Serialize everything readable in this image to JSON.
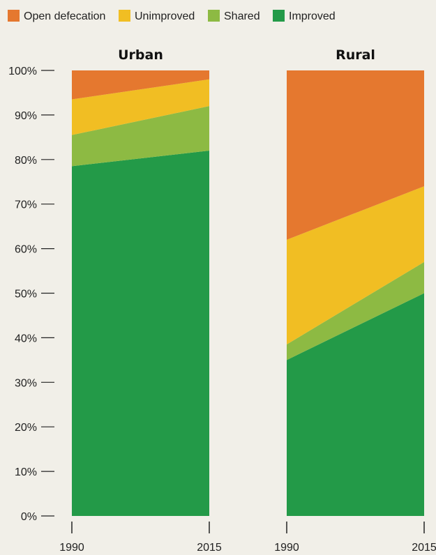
{
  "chart_data": {
    "type": "area",
    "legend": {
      "placement": "top-left",
      "entries": [
        {
          "label": "Open defecation",
          "color": "#e5782f"
        },
        {
          "label": "Unimproved",
          "color": "#f1be23"
        },
        {
          "label": "Shared",
          "color": "#8dba43"
        },
        {
          "label": "Improved",
          "color": "#239a48"
        }
      ]
    },
    "y_ticks": [
      "0%",
      "10%",
      "20%",
      "30%",
      "40%",
      "50%",
      "60%",
      "70%",
      "80%",
      "90%",
      "100%"
    ],
    "ylim": [
      0,
      100
    ],
    "grid": false,
    "panels": [
      {
        "title": "Urban",
        "x": [
          "1990",
          "2015"
        ],
        "series": [
          {
            "name": "Improved",
            "values": [
              78.5,
              82
            ]
          },
          {
            "name": "Shared",
            "values": [
              7,
              10
            ]
          },
          {
            "name": "Unimproved",
            "values": [
              8,
              6
            ]
          },
          {
            "name": "Open defecation",
            "values": [
              6.5,
              2
            ]
          }
        ]
      },
      {
        "title": "Rural",
        "x": [
          "1990",
          "2015"
        ],
        "series": [
          {
            "name": "Improved",
            "values": [
              35,
              50
            ]
          },
          {
            "name": "Shared",
            "values": [
              3.5,
              7
            ]
          },
          {
            "name": "Unimproved",
            "values": [
              23.5,
              17
            ]
          },
          {
            "name": "Open defecation",
            "values": [
              38,
              26
            ]
          }
        ]
      }
    ]
  }
}
